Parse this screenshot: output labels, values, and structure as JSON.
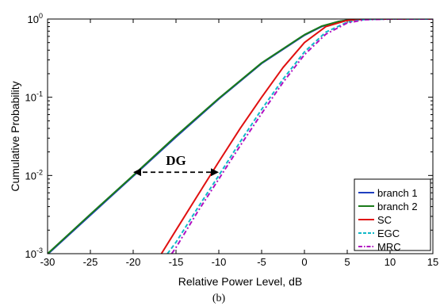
{
  "chart_data": {
    "type": "line",
    "xlabel": "Relative Power Level, dB",
    "ylabel": "Cumulative Probability",
    "caption": "(b)",
    "xlim": [
      -30,
      15
    ],
    "ylim": [
      0.001,
      1
    ],
    "yscale": "log",
    "grid": false,
    "legend_position": "bottom-right",
    "x_ticks": [
      "-30",
      "-25",
      "-20",
      "-15",
      "-10",
      "-5",
      "0",
      "5",
      "10",
      "15"
    ],
    "y_ticks": [
      {
        "base": "10",
        "exp": "-3"
      },
      {
        "base": "10",
        "exp": "-2"
      },
      {
        "base": "10",
        "exp": "-1"
      },
      {
        "base": "10",
        "exp": "0"
      }
    ],
    "series": [
      {
        "name": "branch 1",
        "color": "#1f3fbf",
        "dash": "solid",
        "x": [
          -30,
          -25,
          -20,
          -15,
          -10,
          -5,
          0,
          2,
          4,
          5,
          6,
          8,
          10,
          15
        ],
        "y": [
          0.00098,
          0.0031,
          0.0098,
          0.031,
          0.095,
          0.27,
          0.62,
          0.8,
          0.93,
          0.97,
          0.99,
          1.0,
          1.0,
          1.0
        ]
      },
      {
        "name": "branch 2",
        "color": "#1a7a1a",
        "dash": "solid",
        "x": [
          -30,
          -25,
          -20,
          -15,
          -10,
          -5,
          0,
          2,
          4,
          5,
          6,
          8,
          10,
          15
        ],
        "y": [
          0.001,
          0.0032,
          0.01,
          0.032,
          0.097,
          0.275,
          0.63,
          0.81,
          0.93,
          0.97,
          0.99,
          1.0,
          1.0,
          1.0
        ]
      },
      {
        "name": "SC",
        "color": "#e01010",
        "dash": "solid",
        "x": [
          -16.7,
          -15,
          -12.5,
          -10,
          -7.5,
          -5,
          -2.5,
          0,
          2.5,
          5,
          7,
          10,
          15
        ],
        "y": [
          0.001,
          0.002,
          0.0055,
          0.015,
          0.04,
          0.1,
          0.24,
          0.5,
          0.8,
          0.96,
          0.995,
          1.0,
          1.0
        ]
      },
      {
        "name": "EGC",
        "color": "#10b8c8",
        "dash": "dashed",
        "x": [
          -16.0,
          -15,
          -12.5,
          -10,
          -7.5,
          -5,
          -2.5,
          0,
          2.5,
          5,
          7,
          10,
          15
        ],
        "y": [
          0.001,
          0.0014,
          0.0038,
          0.01,
          0.027,
          0.07,
          0.17,
          0.38,
          0.68,
          0.91,
          0.985,
          1.0,
          1.0
        ]
      },
      {
        "name": "MRC",
        "color": "#b010c0",
        "dash": "dashdot",
        "x": [
          -15.5,
          -15,
          -12.5,
          -10,
          -7.5,
          -5,
          -2.5,
          0,
          2.5,
          5,
          7,
          10,
          15
        ],
        "y": [
          0.001,
          0.0012,
          0.0034,
          0.009,
          0.024,
          0.062,
          0.155,
          0.35,
          0.64,
          0.89,
          0.98,
          1.0,
          1.0
        ]
      }
    ],
    "annotations": [
      {
        "text": "DG",
        "type": "double-arrow",
        "x_from": -20,
        "x_to": -10,
        "y": 0.011
      }
    ]
  }
}
